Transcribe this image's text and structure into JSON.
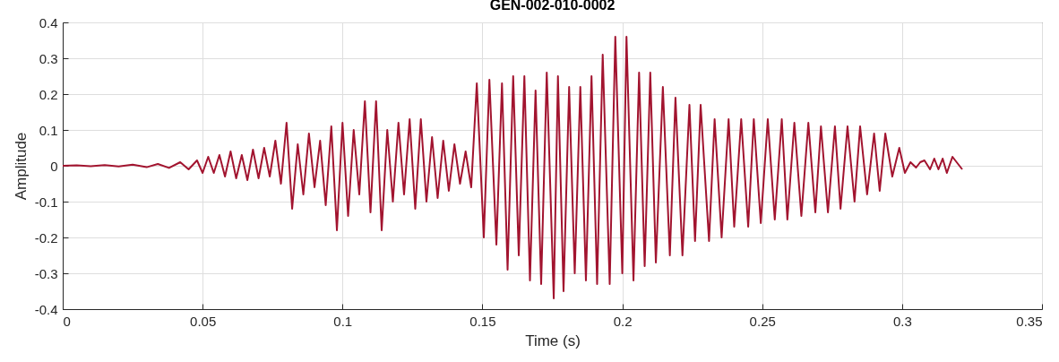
{
  "chart_data": {
    "type": "line",
    "title": "GEN-002-010-0002",
    "xlabel": "Time (s)",
    "ylabel": "Amplitude",
    "xlim": [
      0,
      0.35
    ],
    "xticks": [
      0,
      0.05,
      0.1,
      0.15,
      0.2,
      0.25,
      0.3,
      0.35
    ],
    "ylim": [
      -0.4,
      0.4
    ],
    "yticks": [
      -0.4,
      -0.3,
      -0.2,
      -0.1,
      0,
      0.1,
      0.2,
      0.3,
      0.4
    ],
    "grid": true,
    "line_style": "solid",
    "x": [
      0,
      0.005,
      0.01,
      0.015,
      0.02,
      0.025,
      0.03,
      0.034,
      0.038,
      0.042,
      0.045,
      0.048,
      0.05,
      0.052,
      0.054,
      0.056,
      0.058,
      0.06,
      0.062,
      0.064,
      0.066,
      0.068,
      0.07,
      0.072,
      0.074,
      0.076,
      0.078,
      0.08,
      0.082,
      0.084,
      0.086,
      0.088,
      0.09,
      0.092,
      0.094,
      0.096,
      0.098,
      0.1,
      0.102,
      0.104,
      0.106,
      0.108,
      0.11,
      0.112,
      0.114,
      0.116,
      0.118,
      0.12,
      0.122,
      0.124,
      0.126,
      0.128,
      0.13,
      0.132,
      0.134,
      0.136,
      0.138,
      0.14,
      0.142,
      0.144,
      0.146,
      0.148,
      0.1505,
      0.1525,
      0.155,
      0.157,
      0.159,
      0.161,
      0.163,
      0.165,
      0.167,
      0.169,
      0.171,
      0.173,
      0.1755,
      0.177,
      0.179,
      0.181,
      0.183,
      0.185,
      0.187,
      0.189,
      0.191,
      0.193,
      0.1955,
      0.1975,
      0.2,
      0.2015,
      0.204,
      0.206,
      0.208,
      0.21,
      0.212,
      0.2145,
      0.217,
      0.219,
      0.2215,
      0.224,
      0.226,
      0.228,
      0.231,
      0.233,
      0.2355,
      0.238,
      0.24,
      0.2425,
      0.245,
      0.247,
      0.2495,
      0.252,
      0.2545,
      0.257,
      0.259,
      0.2615,
      0.264,
      0.2665,
      0.269,
      0.271,
      0.2735,
      0.276,
      0.278,
      0.2805,
      0.283,
      0.285,
      0.2875,
      0.29,
      0.292,
      0.294,
      0.2965,
      0.299,
      0.301,
      0.303,
      0.305,
      0.3065,
      0.308,
      0.31,
      0.3115,
      0.313,
      0.3145,
      0.316,
      0.318,
      0.32,
      0.3215
    ],
    "series": [
      {
        "color": "#a2142f",
        "values": [
          0,
          0.001,
          -0.001,
          0.002,
          -0.002,
          0.003,
          -0.004,
          0.005,
          -0.006,
          0.01,
          -0.01,
          0.015,
          -0.02,
          0.025,
          -0.02,
          0.03,
          -0.03,
          0.04,
          -0.035,
          0.03,
          -0.04,
          0.045,
          -0.035,
          0.05,
          -0.03,
          0.07,
          -0.05,
          0.12,
          -0.12,
          0.06,
          -0.08,
          0.09,
          -0.06,
          0.07,
          -0.11,
          0.11,
          -0.18,
          0.12,
          -0.14,
          0.1,
          -0.08,
          0.18,
          -0.13,
          0.18,
          -0.18,
          0.1,
          -0.1,
          0.12,
          -0.08,
          0.13,
          -0.12,
          0.13,
          -0.1,
          0.08,
          -0.09,
          0.07,
          -0.07,
          0.06,
          -0.05,
          0.04,
          -0.06,
          0.23,
          -0.2,
          0.24,
          -0.22,
          0.23,
          -0.29,
          0.25,
          -0.25,
          0.25,
          -0.32,
          0.21,
          -0.33,
          0.26,
          -0.37,
          0.25,
          -0.35,
          0.22,
          -0.3,
          0.22,
          -0.32,
          0.25,
          -0.33,
          0.31,
          -0.33,
          0.36,
          -0.3,
          0.36,
          -0.32,
          0.26,
          -0.28,
          0.26,
          -0.27,
          0.22,
          -0.25,
          0.19,
          -0.25,
          0.17,
          -0.21,
          0.17,
          -0.21,
          0.13,
          -0.2,
          0.13,
          -0.17,
          0.13,
          -0.17,
          0.13,
          -0.16,
          0.13,
          -0.15,
          0.13,
          -0.15,
          0.12,
          -0.14,
          0.12,
          -0.13,
          0.11,
          -0.13,
          0.11,
          -0.12,
          0.11,
          -0.1,
          0.11,
          -0.08,
          0.09,
          -0.07,
          0.09,
          -0.03,
          0.05,
          -0.02,
          0.01,
          -0.005,
          0.01,
          0.015,
          -0.01,
          0.02,
          -0.01,
          0.02,
          -0.02,
          0.025,
          0.005,
          -0.01
        ]
      }
    ]
  }
}
